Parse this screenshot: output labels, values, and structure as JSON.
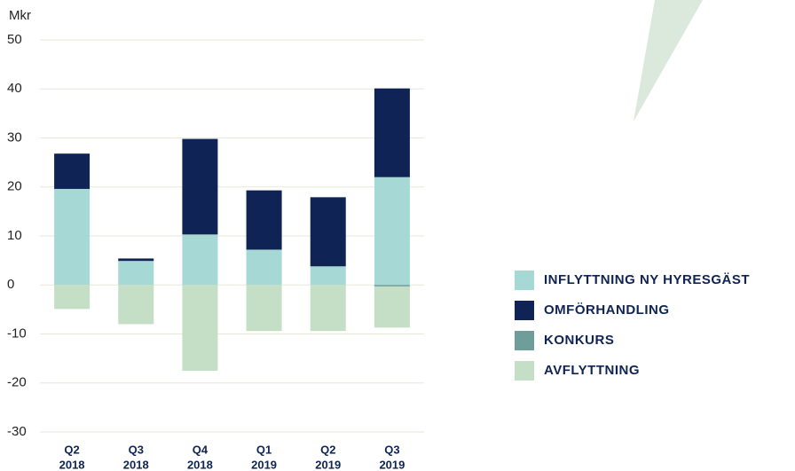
{
  "chart_data": {
    "type": "stacked-bar",
    "y_label": "Mkr",
    "categories": [
      [
        "Q2",
        "2018"
      ],
      [
        "Q3",
        "2018"
      ],
      [
        "Q4",
        "2018"
      ],
      [
        "Q1",
        "2019"
      ],
      [
        "Q2",
        "2019"
      ],
      [
        "Q3",
        "2019"
      ]
    ],
    "series": [
      {
        "name": "INFLYTTNING NY HYRESGÄST",
        "color": "#a6d8d5",
        "values": [
          19.6,
          4.9,
          10.3,
          7.2,
          3.8,
          22.0
        ]
      },
      {
        "name": "OMFÖRHANDLING",
        "color": "#0f2454",
        "values": [
          7.2,
          0.5,
          19.5,
          12.1,
          14.1,
          18.1
        ]
      },
      {
        "name": "KONKURS",
        "color": "#6f9e9a",
        "values": [
          0,
          0,
          0,
          0,
          0,
          -0.3
        ]
      },
      {
        "name": "AVFLYTTNING",
        "color": "#c5dfc7",
        "values": [
          -4.9,
          -8.0,
          -17.5,
          -9.4,
          -9.4,
          -8.4
        ]
      }
    ],
    "ylim": [
      -30,
      50
    ],
    "yticks": [
      -30,
      -20,
      -10,
      0,
      10,
      20,
      30,
      40,
      50
    ],
    "grid": true
  }
}
